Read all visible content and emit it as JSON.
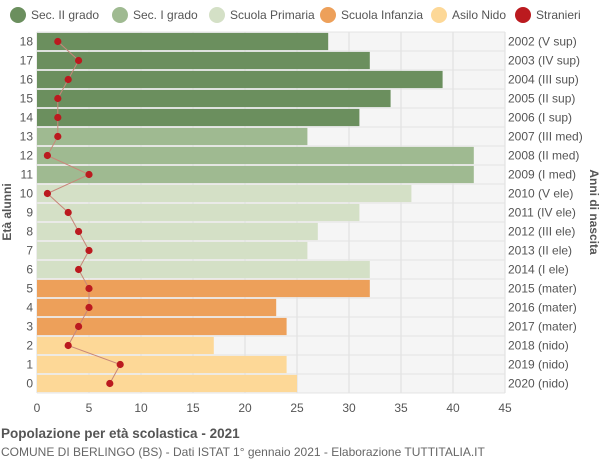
{
  "legend": {
    "sec2": "Sec. II grado",
    "sec1": "Sec. I grado",
    "primaria": "Scuola Primaria",
    "infanzia": "Scuola Infanzia",
    "nido": "Asilo Nido",
    "stranieri": "Stranieri"
  },
  "colors": {
    "sec2": "#6b8f5e",
    "sec1": "#9fba91",
    "primaria": "#d4e0c6",
    "infanzia": "#eda05a",
    "nido": "#fdd897",
    "stranieri": "#bb1a1f"
  },
  "footer": {
    "title": "Popolazione per età scolastica - 2021",
    "subtitle": "COMUNE DI BERLINGO (BS) - Dati ISTAT 1° gennaio 2021 - Elaborazione TUTTITALIA.IT"
  },
  "chart_data": {
    "type": "bar",
    "orientation": "horizontal",
    "ylabel": "Età alunni",
    "ylabel_right": "Anni di nascita",
    "xlim": [
      0,
      45
    ],
    "x_ticks": [
      0,
      5,
      10,
      15,
      20,
      25,
      30,
      35,
      40,
      45
    ],
    "grid": true,
    "legend_position": "top",
    "rows": [
      {
        "age": "18",
        "year": "2002 (V sup)",
        "value": 28,
        "group": "sec2",
        "stranieri": 2
      },
      {
        "age": "17",
        "year": "2003 (IV sup)",
        "value": 32,
        "group": "sec2",
        "stranieri": 4
      },
      {
        "age": "16",
        "year": "2004 (III sup)",
        "value": 39,
        "group": "sec2",
        "stranieri": 3
      },
      {
        "age": "15",
        "year": "2005 (II sup)",
        "value": 34,
        "group": "sec2",
        "stranieri": 2
      },
      {
        "age": "14",
        "year": "2006 (I sup)",
        "value": 31,
        "group": "sec2",
        "stranieri": 2
      },
      {
        "age": "13",
        "year": "2007 (III med)",
        "value": 26,
        "group": "sec1",
        "stranieri": 2
      },
      {
        "age": "12",
        "year": "2008 (II med)",
        "value": 42,
        "group": "sec1",
        "stranieri": 1
      },
      {
        "age": "11",
        "year": "2009 (I med)",
        "value": 42,
        "group": "sec1",
        "stranieri": 5
      },
      {
        "age": "10",
        "year": "2010 (V ele)",
        "value": 36,
        "group": "primaria",
        "stranieri": 1
      },
      {
        "age": "9",
        "year": "2011 (IV ele)",
        "value": 31,
        "group": "primaria",
        "stranieri": 3
      },
      {
        "age": "8",
        "year": "2012 (III ele)",
        "value": 27,
        "group": "primaria",
        "stranieri": 4
      },
      {
        "age": "7",
        "year": "2013 (II ele)",
        "value": 26,
        "group": "primaria",
        "stranieri": 5
      },
      {
        "age": "6",
        "year": "2014 (I ele)",
        "value": 32,
        "group": "primaria",
        "stranieri": 4
      },
      {
        "age": "5",
        "year": "2015 (mater)",
        "value": 32,
        "group": "infanzia",
        "stranieri": 5
      },
      {
        "age": "4",
        "year": "2016 (mater)",
        "value": 23,
        "group": "infanzia",
        "stranieri": 5
      },
      {
        "age": "3",
        "year": "2017 (mater)",
        "value": 24,
        "group": "infanzia",
        "stranieri": 4
      },
      {
        "age": "2",
        "year": "2018 (nido)",
        "value": 17,
        "group": "nido",
        "stranieri": 3
      },
      {
        "age": "1",
        "year": "2019 (nido)",
        "value": 24,
        "group": "nido",
        "stranieri": 8
      },
      {
        "age": "0",
        "year": "2020 (nido)",
        "value": 25,
        "group": "nido",
        "stranieri": 7
      }
    ]
  }
}
